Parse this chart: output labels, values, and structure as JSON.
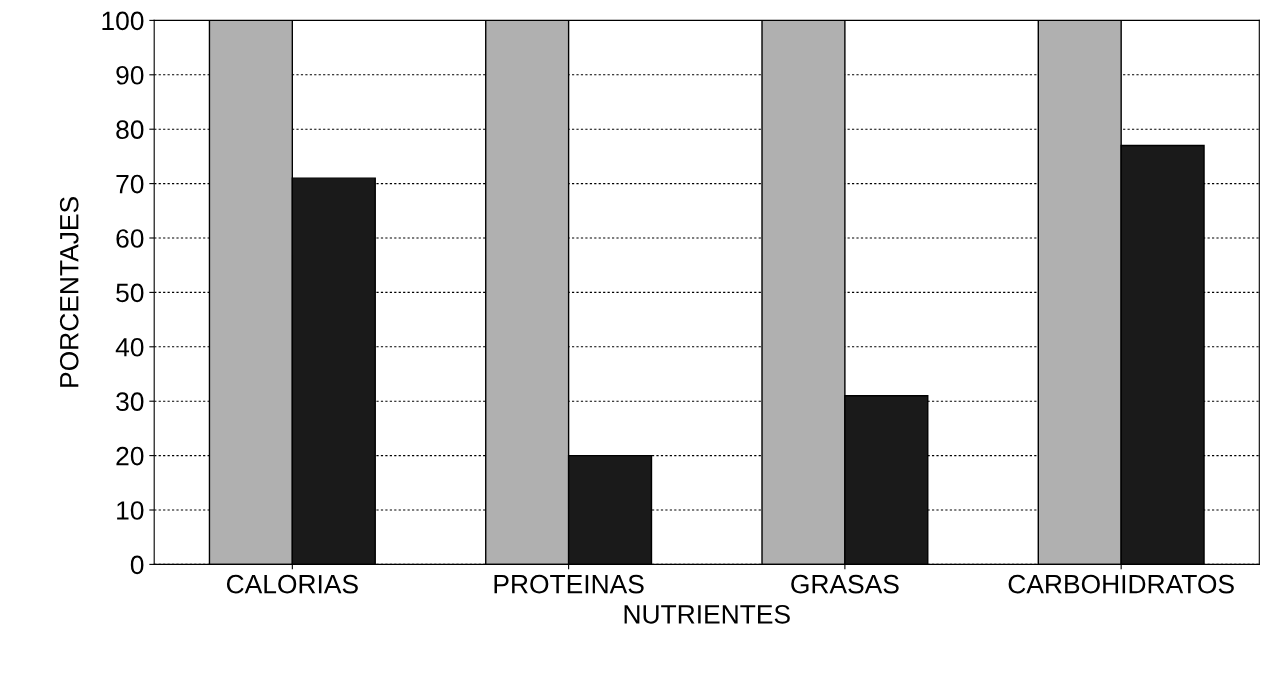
{
  "chart_data": {
    "type": "bar",
    "xlabel": "NUTRIENTES",
    "ylabel": "PORCENTAJES",
    "categories": [
      "CALORIAS",
      "PROTEINAS",
      "GRASAS",
      "CARBOHIDRATOS"
    ],
    "series": [
      {
        "color": "#b0b0b0",
        "values": [
          100,
          100,
          100,
          100
        ]
      },
      {
        "color": "#1a1a1a",
        "values": [
          71,
          20,
          31,
          77
        ]
      }
    ],
    "ylim": [
      0,
      100
    ],
    "yticks": [
      0,
      10,
      20,
      30,
      40,
      50,
      60,
      70,
      80,
      90,
      100
    ],
    "grid": "y",
    "legend": false
  }
}
